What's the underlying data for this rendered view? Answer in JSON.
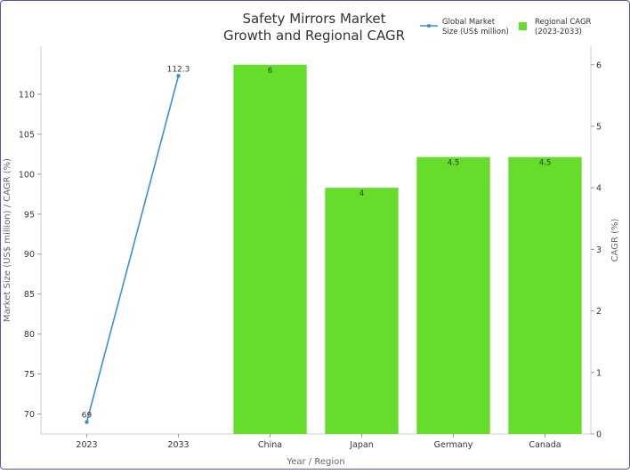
{
  "chart_data": {
    "type": "bar",
    "title_lines": [
      "Safety Mirrors Market",
      "Growth and Regional CAGR"
    ],
    "xlabel": "Year / Region",
    "ylabel_left": "Market Size (US$ million) / CAGR (%)",
    "ylabel_right": "CAGR (%)",
    "categories": [
      "2023",
      "2033",
      "China",
      "Japan",
      "Germany",
      "Canada"
    ],
    "ylim_left": [
      67.5,
      116
    ],
    "ylim_right": [
      0,
      6.3
    ],
    "left_ticks": [
      70,
      75,
      80,
      85,
      90,
      95,
      100,
      105,
      110
    ],
    "right_ticks": [
      0,
      1,
      2,
      3,
      4,
      5,
      6
    ],
    "legend_position": "top-right",
    "series": [
      {
        "name": "Global Market Size (US$ million)",
        "legend_lines": [
          "Global Market",
          "Size (US$ million)"
        ],
        "type": "line",
        "axis": "left",
        "color": "#3a91d6",
        "x": [
          "2023",
          "2033"
        ],
        "values": [
          69,
          112.3
        ],
        "labels": [
          "69",
          "112.3"
        ]
      },
      {
        "name": "Regional CAGR (2023-2033)",
        "legend_lines": [
          "Regional CAGR",
          "(2023-2033)"
        ],
        "type": "bar",
        "axis": "right",
        "color": "#66dd2a",
        "x": [
          "China",
          "Japan",
          "Germany",
          "Canada"
        ],
        "values": [
          6,
          4,
          4.5,
          4.5
        ],
        "labels": [
          "6",
          "4",
          "4.5",
          "4.5"
        ]
      }
    ]
  }
}
